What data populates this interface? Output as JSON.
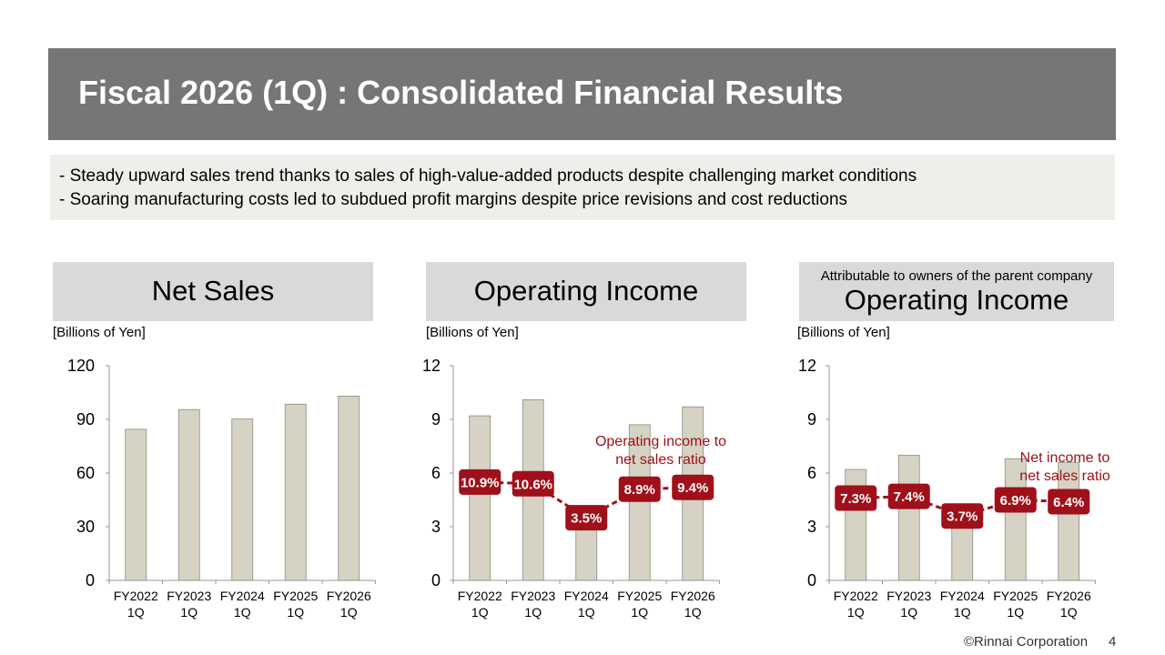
{
  "header": {
    "title": "Fiscal 2026 (1Q) : Consolidated Financial Results"
  },
  "bullets": [
    "- Steady upward sales trend thanks to sales of high-value-added products despite challenging market conditions",
    "- Soaring manufacturing costs led to subdued profit margins despite price revisions and cost reductions"
  ],
  "panels": {
    "net_sales": {
      "title": "Net Sales",
      "unit": "[Billions of Yen]"
    },
    "operating_income": {
      "title": "Operating Income",
      "unit": "[Billions of Yen]"
    },
    "owners_income": {
      "subtitle": "Attributable to owners of the parent company",
      "title": "Operating Income",
      "unit": "[Billions of Yen]"
    }
  },
  "colors": {
    "bar": "#d6d3c4",
    "bar_stroke": "#8a8a80",
    "ratio": "#a0101a",
    "title_bar": "#767676"
  },
  "chart_data": [
    {
      "type": "bar",
      "categories": [
        [
          "FY2022",
          "1Q"
        ],
        [
          "FY2023",
          "1Q"
        ],
        [
          "FY2024",
          "1Q"
        ],
        [
          "FY2025",
          "1Q"
        ],
        [
          "FY2026",
          "1Q"
        ]
      ],
      "values": [
        84.5,
        95.5,
        90.2,
        98.5,
        103.0
      ],
      "yticks": [
        0,
        30,
        60,
        90,
        120
      ],
      "ylim": [
        0,
        120
      ]
    },
    {
      "type": "bar",
      "categories": [
        [
          "FY2022",
          "1Q"
        ],
        [
          "FY2023",
          "1Q"
        ],
        [
          "FY2024",
          "1Q"
        ],
        [
          "FY2025",
          "1Q"
        ],
        [
          "FY2026",
          "1Q"
        ]
      ],
      "values": [
        9.2,
        10.1,
        3.1,
        8.7,
        9.7
      ],
      "yticks": [
        0,
        3,
        6,
        9,
        12
      ],
      "ylim": [
        0,
        12
      ],
      "ratio": {
        "annotation": [
          "Operating income to",
          "net sales ratio"
        ],
        "labels": [
          "10.9%",
          "10.6%",
          "3.5%",
          "8.9%",
          "9.4%"
        ],
        "y": [
          5.5,
          5.4,
          3.5,
          5.1,
          5.2
        ]
      }
    },
    {
      "type": "bar",
      "categories": [
        [
          "FY2022",
          "1Q"
        ],
        [
          "FY2023",
          "1Q"
        ],
        [
          "FY2024",
          "1Q"
        ],
        [
          "FY2025",
          "1Q"
        ],
        [
          "FY2026",
          "1Q"
        ]
      ],
      "values": [
        6.2,
        7.0,
        3.0,
        6.8,
        6.6
      ],
      "yticks": [
        0,
        3,
        6,
        9,
        12
      ],
      "ylim": [
        0,
        12
      ],
      "ratio": {
        "annotation": [
          "Net income to",
          "net sales ratio"
        ],
        "labels": [
          "7.3%",
          "7.4%",
          "3.7%",
          "6.9%",
          "6.4%"
        ],
        "y": [
          4.6,
          4.7,
          3.6,
          4.5,
          4.4
        ]
      }
    }
  ],
  "footer": {
    "copyright": "©Rinnai Corporation",
    "page": "4"
  }
}
